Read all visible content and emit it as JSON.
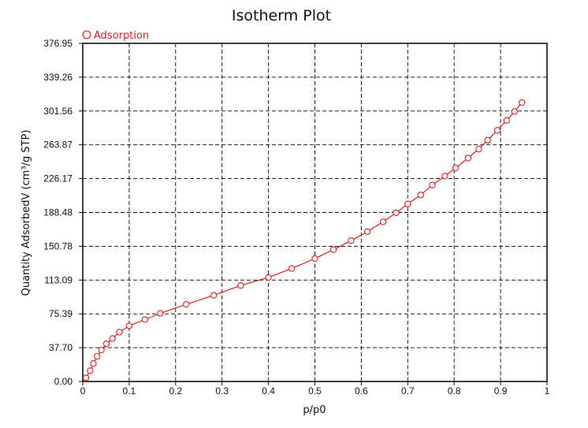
{
  "chart_data": {
    "type": "line",
    "title": "Isotherm Plot",
    "xlabel": "p/p0",
    "ylabel": "Quantity AdsorbedV (cm³/g STP)",
    "xlim": [
      0,
      1
    ],
    "ylim": [
      0,
      376.95
    ],
    "x_ticks": [
      0,
      0.1,
      0.2,
      0.3,
      0.4,
      0.5,
      0.6,
      0.7,
      0.8,
      0.9,
      1
    ],
    "x_tick_labels": [
      "0",
      "0.1",
      "0.2",
      "0.3",
      "0.4",
      "0.5",
      "0.6",
      "0.7",
      "0.8",
      "0.9",
      "1"
    ],
    "y_ticks": [
      0,
      37.7,
      75.39,
      113.09,
      150.78,
      188.48,
      226.17,
      263.87,
      301.56,
      339.26,
      376.95
    ],
    "y_tick_labels": [
      "0.00",
      "37.70",
      "75.39",
      "113.09",
      "150.78",
      "188.48",
      "226.17",
      "263.87",
      "301.56",
      "339.26",
      "376.95"
    ],
    "grid": true,
    "legend_position": "top-left",
    "series": [
      {
        "name": "Adsorption",
        "color": "#d42020",
        "marker": "open-circle",
        "points": [
          [
            0.007,
            4
          ],
          [
            0.016,
            12
          ],
          [
            0.023,
            20
          ],
          [
            0.031,
            28
          ],
          [
            0.04,
            35
          ],
          [
            0.051,
            42
          ],
          [
            0.064,
            48
          ],
          [
            0.079,
            55
          ],
          [
            0.1,
            62
          ],
          [
            0.134,
            69
          ],
          [
            0.167,
            76
          ],
          [
            0.223,
            86
          ],
          [
            0.282,
            96
          ],
          [
            0.34,
            107
          ],
          [
            0.4,
            116
          ],
          [
            0.45,
            126
          ],
          [
            0.5,
            137
          ],
          [
            0.54,
            147
          ],
          [
            0.578,
            157
          ],
          [
            0.613,
            167
          ],
          [
            0.647,
            178
          ],
          [
            0.675,
            188
          ],
          [
            0.7,
            198
          ],
          [
            0.728,
            208
          ],
          [
            0.753,
            219
          ],
          [
            0.78,
            229
          ],
          [
            0.803,
            238
          ],
          [
            0.83,
            249
          ],
          [
            0.853,
            259
          ],
          [
            0.872,
            269
          ],
          [
            0.893,
            280
          ],
          [
            0.913,
            291
          ],
          [
            0.93,
            301
          ],
          [
            0.946,
            311
          ]
        ]
      }
    ]
  }
}
